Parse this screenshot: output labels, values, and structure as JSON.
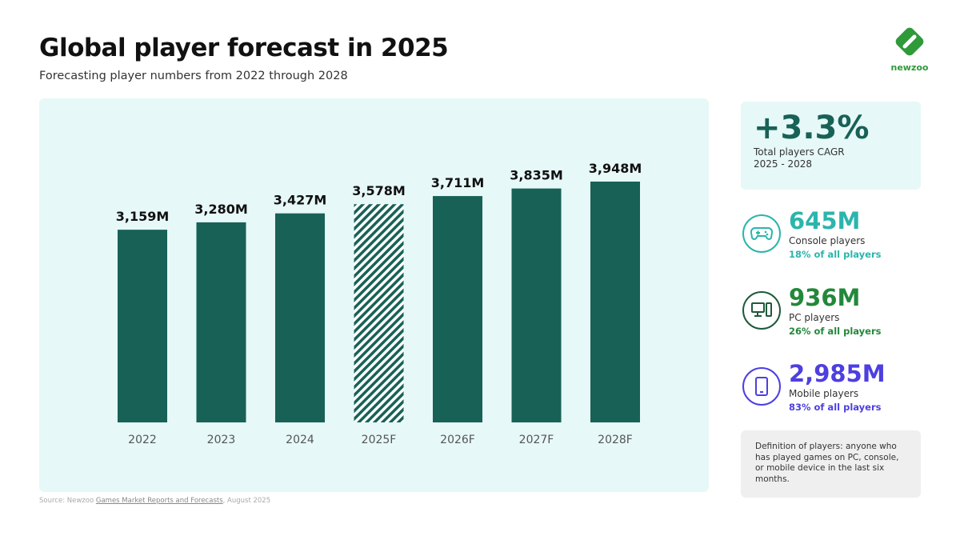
{
  "header": {
    "title": "Global player forecast in 2025",
    "subtitle": "Forecasting player numbers from 2022 through 2028",
    "logo": "newzoo"
  },
  "chart_data": {
    "type": "bar",
    "categories": [
      "2022",
      "2023",
      "2024",
      "2025F",
      "2026F",
      "2027F",
      "2028F"
    ],
    "values": [
      3159,
      3280,
      3427,
      3578,
      3711,
      3835,
      3948
    ],
    "data_labels": [
      "3,159M",
      "3,280M",
      "3,427M",
      "3,578M",
      "3,711M",
      "3,835M",
      "3,948M"
    ],
    "highlighted": "2025F",
    "highlight_style": "hatched",
    "ylim": [
      0,
      3948
    ],
    "grid": false,
    "bar_color": "#186157"
  },
  "source": {
    "prefix": "Source: Newzoo ",
    "link": "Games Market Reports and Forecasts",
    "suffix": ", August 2025"
  },
  "cagr": {
    "value": "+3.3%",
    "label": "Total players CAGR",
    "range": "2025 - 2028"
  },
  "stats": [
    {
      "icon": "gamepad-icon",
      "value": "645M",
      "label": "Console players",
      "pct": "18% of all players",
      "color": "#2bb5ad"
    },
    {
      "icon": "pc-icon",
      "value": "936M",
      "label": "PC players",
      "pct": "26% of all players",
      "color": "#23883a"
    },
    {
      "icon": "mobile-icon",
      "value": "2,985M",
      "label": "Mobile players",
      "pct": "83% of all players",
      "color": "#4d3fe0"
    }
  ],
  "definition": "Definition of players: anyone who has played games on PC, console, or mobile device in the last six months."
}
